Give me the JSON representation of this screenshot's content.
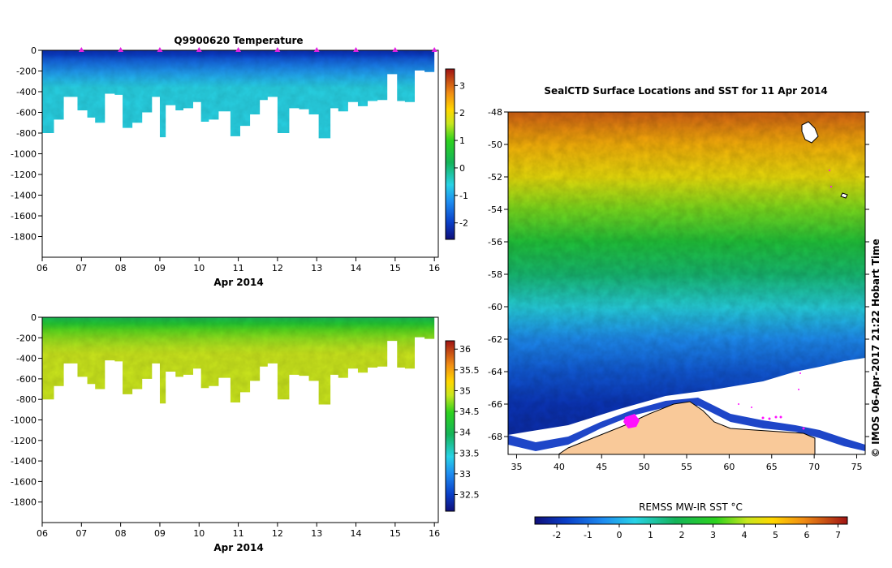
{
  "chart_data": [
    {
      "type": "heatmap",
      "title": "Q9900620  Temperature",
      "xlabel": "Apr 2014",
      "ylabel": "",
      "x_ticks": [
        "06",
        "07",
        "08",
        "09",
        "10",
        "11",
        "12",
        "13",
        "14",
        "15",
        "16"
      ],
      "xlim": [
        6,
        16.1
      ],
      "y_ticks": [
        "0",
        "-200",
        "-400",
        "-600",
        "-800",
        "-1000",
        "-1200",
        "-1400",
        "-1600",
        "-1800"
      ],
      "ylim": [
        -2000,
        0
      ],
      "colorbar_ticks": [
        "3",
        "2",
        "1",
        "0",
        "-1",
        "-2"
      ],
      "colorbar_range": [
        -2.6,
        3.6
      ],
      "profile_marker_days": [
        7,
        8,
        9,
        10,
        11,
        12,
        13,
        14,
        15,
        16
      ],
      "profile_depths": [
        {
          "start": 6.0,
          "end": 6.3,
          "depth": 800
        },
        {
          "start": 6.3,
          "end": 6.55,
          "depth": 670
        },
        {
          "start": 6.55,
          "end": 6.75,
          "depth": 450
        },
        {
          "start": 6.75,
          "end": 6.9,
          "depth": 450
        },
        {
          "start": 6.9,
          "end": 7.15,
          "depth": 580
        },
        {
          "start": 7.15,
          "end": 7.35,
          "depth": 650
        },
        {
          "start": 7.35,
          "end": 7.6,
          "depth": 700
        },
        {
          "start": 7.6,
          "end": 7.85,
          "depth": 420
        },
        {
          "start": 7.85,
          "end": 8.05,
          "depth": 430
        },
        {
          "start": 8.05,
          "end": 8.3,
          "depth": 750
        },
        {
          "start": 8.3,
          "end": 8.55,
          "depth": 700
        },
        {
          "start": 8.55,
          "end": 8.8,
          "depth": 600
        },
        {
          "start": 8.8,
          "end": 9.0,
          "depth": 450
        },
        {
          "start": 9.0,
          "end": 9.15,
          "depth": 840
        },
        {
          "start": 9.15,
          "end": 9.4,
          "depth": 530
        },
        {
          "start": 9.4,
          "end": 9.6,
          "depth": 580
        },
        {
          "start": 9.6,
          "end": 9.85,
          "depth": 560
        },
        {
          "start": 9.85,
          "end": 10.05,
          "depth": 500
        },
        {
          "start": 10.05,
          "end": 10.25,
          "depth": 690
        },
        {
          "start": 10.25,
          "end": 10.5,
          "depth": 670
        },
        {
          "start": 10.5,
          "end": 10.8,
          "depth": 590
        },
        {
          "start": 10.8,
          "end": 11.05,
          "depth": 830
        },
        {
          "start": 11.05,
          "end": 11.3,
          "depth": 730
        },
        {
          "start": 11.3,
          "end": 11.55,
          "depth": 620
        },
        {
          "start": 11.55,
          "end": 11.75,
          "depth": 480
        },
        {
          "start": 11.75,
          "end": 12.0,
          "depth": 450
        },
        {
          "start": 12.0,
          "end": 12.3,
          "depth": 800
        },
        {
          "start": 12.3,
          "end": 12.55,
          "depth": 560
        },
        {
          "start": 12.55,
          "end": 12.8,
          "depth": 570
        },
        {
          "start": 12.8,
          "end": 13.05,
          "depth": 620
        },
        {
          "start": 13.05,
          "end": 13.35,
          "depth": 850
        },
        {
          "start": 13.35,
          "end": 13.55,
          "depth": 560
        },
        {
          "start": 13.55,
          "end": 13.8,
          "depth": 590
        },
        {
          "start": 13.8,
          "end": 14.05,
          "depth": 500
        },
        {
          "start": 14.05,
          "end": 14.3,
          "depth": 540
        },
        {
          "start": 14.3,
          "end": 14.55,
          "depth": 490
        },
        {
          "start": 14.55,
          "end": 14.8,
          "depth": 480
        },
        {
          "start": 14.8,
          "end": 15.05,
          "depth": 230
        },
        {
          "start": 15.05,
          "end": 15.25,
          "depth": 490
        },
        {
          "start": 15.25,
          "end": 15.5,
          "depth": 500
        },
        {
          "start": 15.5,
          "end": 15.75,
          "depth": 195
        },
        {
          "start": 15.75,
          "end": 16.0,
          "depth": 210
        }
      ],
      "value_by_depth": [
        {
          "depth": 0,
          "value": -2.2
        },
        {
          "depth": 100,
          "value": -2.0
        },
        {
          "depth": 200,
          "value": -1.7
        },
        {
          "depth": 300,
          "value": -1.5
        },
        {
          "depth": 500,
          "value": -1.1
        },
        {
          "depth": 700,
          "value": -0.8
        },
        {
          "depth": 850,
          "value": -0.6
        }
      ]
    },
    {
      "type": "heatmap",
      "title": "",
      "xlabel": "Apr 2014",
      "ylabel": "",
      "x_ticks": [
        "06",
        "07",
        "08",
        "09",
        "10",
        "11",
        "12",
        "13",
        "14",
        "15",
        "16"
      ],
      "xlim": [
        6,
        16.1
      ],
      "y_ticks": [
        "0",
        "-200",
        "-400",
        "-600",
        "-800",
        "-1000",
        "-1200",
        "-1400",
        "-1600",
        "-1800"
      ],
      "ylim": [
        -2000,
        0
      ],
      "colorbar_ticks": [
        "36",
        "35.5",
        "35",
        "34.5",
        "34",
        "33.5",
        "33",
        "32.5"
      ],
      "colorbar_range": [
        32.1,
        36.2
      ],
      "value_by_depth": [
        {
          "depth": 0,
          "value": 34.0
        },
        {
          "depth": 150,
          "value": 34.3
        },
        {
          "depth": 300,
          "value": 34.6
        },
        {
          "depth": 500,
          "value": 34.75
        },
        {
          "depth": 700,
          "value": 34.85
        },
        {
          "depth": 850,
          "value": 34.9
        }
      ]
    },
    {
      "type": "heatmap",
      "title": "SealCTD Surface Locations and SST for 11 Apr 2014",
      "xlabel": "",
      "ylabel": "",
      "x_ticks": [
        "35",
        "40",
        "45",
        "50",
        "55",
        "60",
        "65",
        "70",
        "75"
      ],
      "xlim": [
        34,
        76
      ],
      "y_ticks": [
        "-48",
        "-50",
        "-52",
        "-54",
        "-56",
        "-58",
        "-60",
        "-62",
        "-64",
        "-66",
        "-68"
      ],
      "ylim": [
        -69.1,
        -48
      ],
      "colorbar_title": "REMSS MW-IR SST °C",
      "colorbar_ticks": [
        "-2",
        "-1",
        "0",
        "1",
        "2",
        "3",
        "4",
        "5",
        "6",
        "7"
      ],
      "colorbar_range": [
        -2.7,
        7.3
      ],
      "credit": "© IMOS 06-Apr-2017 21:22 Hobart Time",
      "sst_by_latitude": [
        {
          "lat": -48,
          "value": 6.4
        },
        {
          "lat": -50,
          "value": 5.4
        },
        {
          "lat": -52,
          "value": 4.6
        },
        {
          "lat": -54,
          "value": 3.6
        },
        {
          "lat": -56,
          "value": 2.5
        },
        {
          "lat": -58,
          "value": 1.6
        },
        {
          "lat": -60,
          "value": 0.6
        },
        {
          "lat": -62,
          "value": -0.5
        },
        {
          "lat": -64,
          "value": -1.3
        },
        {
          "lat": -66,
          "value": -1.9
        },
        {
          "lat": -68,
          "value": -2.1
        }
      ]
    }
  ]
}
